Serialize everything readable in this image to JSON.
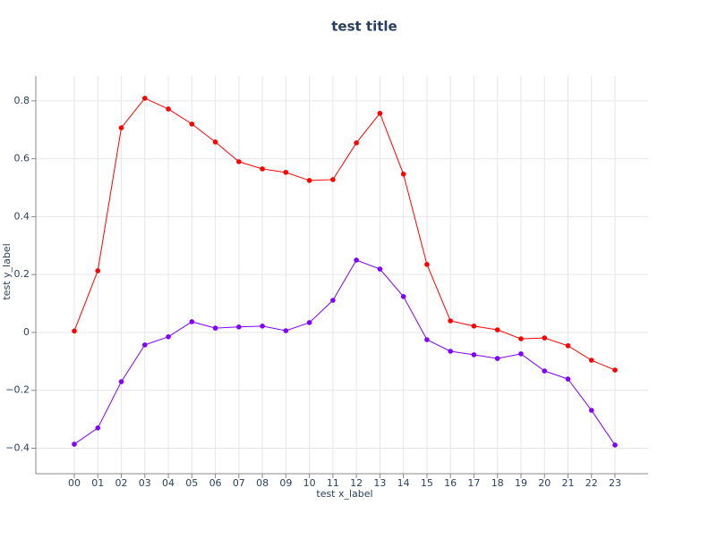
{
  "chart_data": {
    "type": "line",
    "title": "test title",
    "x_label": "test x_label",
    "y_label": "test y_label",
    "categories": [
      "00",
      "01",
      "02",
      "03",
      "04",
      "05",
      "06",
      "07",
      "08",
      "09",
      "10",
      "11",
      "12",
      "13",
      "14",
      "15",
      "16",
      "17",
      "18",
      "19",
      "20",
      "21",
      "22",
      "23"
    ],
    "series": [
      {
        "color": "#ff0000",
        "values": [
          0.005,
          0.213,
          0.707,
          0.809,
          0.772,
          0.72,
          0.658,
          0.59,
          0.565,
          0.553,
          0.525,
          0.528,
          0.655,
          0.757,
          0.547,
          0.235,
          0.04,
          0.022,
          0.009,
          -0.022,
          -0.019,
          -0.046,
          -0.096,
          -0.13
        ]
      },
      {
        "color": "#7f00ff",
        "values": [
          -0.386,
          -0.33,
          -0.17,
          -0.043,
          -0.015,
          0.037,
          0.015,
          0.019,
          0.022,
          0.006,
          0.034,
          0.111,
          0.25,
          0.219,
          0.124,
          -0.025,
          -0.065,
          -0.077,
          -0.09,
          -0.074,
          -0.133,
          -0.161,
          -0.269,
          -0.389
        ]
      }
    ],
    "ylim": [
      -0.488,
      0.886
    ],
    "yticks": [
      {
        "value": -0.4,
        "label": "−0.4"
      },
      {
        "value": -0.2,
        "label": "−0.2"
      },
      0,
      0.2,
      0.4,
      0.6,
      0.8
    ],
    "grid": true
  }
}
